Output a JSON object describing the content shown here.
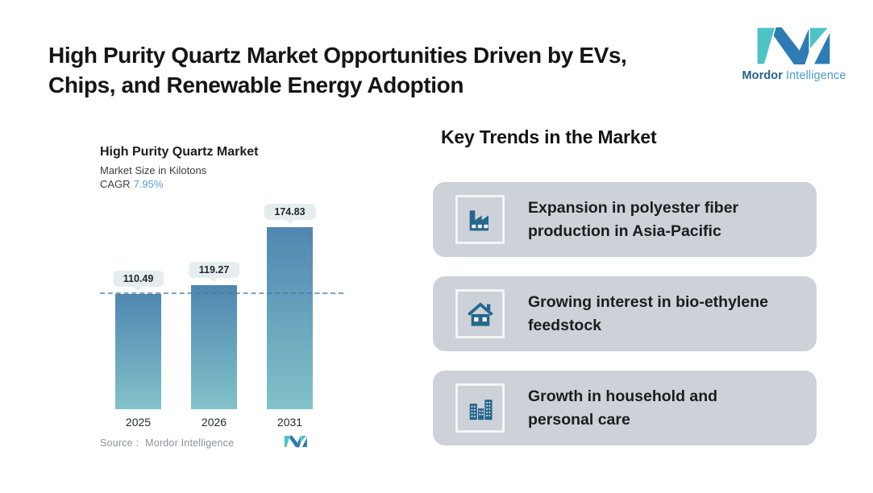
{
  "header": {
    "title": [
      "High Purity Quartz Market Opportunities Driven by EVs,",
      "Chips, and Renewable Energy Adoption"
    ]
  },
  "brand": {
    "name_bold": "Mordor",
    "name_light": "Intelligence",
    "teal": "#4EC3C6",
    "blue": "#2E7CB5"
  },
  "chart": {
    "title": "High Purity Quartz Market",
    "subtitle": "Market Size in Kilotons",
    "cagr_label": "CAGR",
    "cagr_value": "7.95%",
    "source_label": "Source :",
    "source_value": "Mordor Intelligence"
  },
  "chart_data": {
    "type": "bar",
    "title": "High Purity Quartz Market",
    "ylabel": "Market Size in Kilotons",
    "categories": [
      "2025",
      "2026",
      "2031"
    ],
    "values": [
      110.49,
      119.27,
      174.83
    ],
    "cagr_percent": 7.95,
    "reference_line": 110.49,
    "grid": false,
    "value_labels": true,
    "bar_color_top": "#4F86B0",
    "bar_color_bottom": "#82C2C9",
    "reference_line_color": "#6396BF",
    "label_badge_bg": "#E6EDEF"
  },
  "trends": {
    "heading": "Key Trends in the Market",
    "cards": [
      {
        "icon": "factory-icon",
        "line1": "Expansion in polyester fiber",
        "line2": "production in Asia-Pacific"
      },
      {
        "icon": "house-icon",
        "line1": "Growing interest in bio-ethylene",
        "line2": "feedstock"
      },
      {
        "icon": "buildings-icon",
        "line1": "Growth in household and",
        "line2": "personal care"
      }
    ]
  },
  "colors": {
    "card_bg": "#CDD2D9",
    "icon_blue": "#25678C",
    "cagr_value_color": "#5B9BD5"
  }
}
